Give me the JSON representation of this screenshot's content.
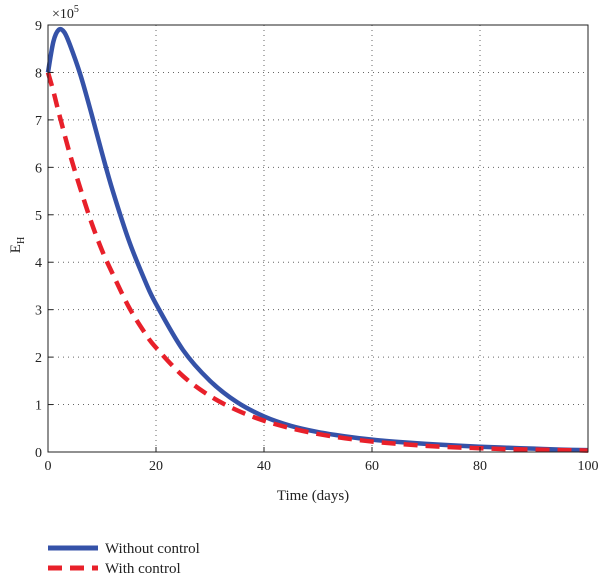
{
  "chart_data": {
    "type": "line",
    "title": "",
    "xlabel": "Time (days)",
    "ylabel_main": "E",
    "ylabel_sub": "H",
    "xlim": [
      0,
      100
    ],
    "ylim": [
      0,
      9
    ],
    "y_multiplier_base": "×10",
    "y_multiplier_exp": "5",
    "xticks": [
      0,
      20,
      40,
      60,
      80,
      100
    ],
    "yticks": [
      0,
      1,
      2,
      3,
      4,
      5,
      6,
      7,
      8,
      9
    ],
    "grid": true,
    "legend_position": "bottom-left",
    "series": [
      {
        "name": "Without control",
        "color": "#3552a8",
        "style": "solid",
        "x": [
          0,
          1,
          2,
          3,
          4,
          6,
          8,
          10,
          12,
          15,
          18,
          20,
          25,
          30,
          35,
          40,
          45,
          50,
          55,
          60,
          65,
          70,
          75,
          80,
          85,
          90,
          95,
          100
        ],
        "y": [
          8.0,
          8.65,
          8.9,
          8.85,
          8.6,
          7.95,
          7.15,
          6.3,
          5.5,
          4.45,
          3.6,
          3.12,
          2.15,
          1.5,
          1.05,
          0.75,
          0.55,
          0.42,
          0.33,
          0.26,
          0.21,
          0.17,
          0.14,
          0.11,
          0.09,
          0.07,
          0.05,
          0.04
        ]
      },
      {
        "name": "With control",
        "color": "#e8202a",
        "style": "dashed",
        "x": [
          0,
          1,
          2,
          4,
          6,
          8,
          10,
          12,
          15,
          18,
          20,
          25,
          30,
          35,
          40,
          45,
          50,
          55,
          60,
          65,
          70,
          75,
          80,
          85,
          90,
          95,
          100
        ],
        "y": [
          8.0,
          7.6,
          7.15,
          6.3,
          5.55,
          4.85,
          4.25,
          3.75,
          3.05,
          2.5,
          2.2,
          1.6,
          1.18,
          0.88,
          0.66,
          0.5,
          0.38,
          0.29,
          0.22,
          0.17,
          0.13,
          0.1,
          0.08,
          0.06,
          0.05,
          0.04,
          0.03
        ]
      }
    ]
  }
}
